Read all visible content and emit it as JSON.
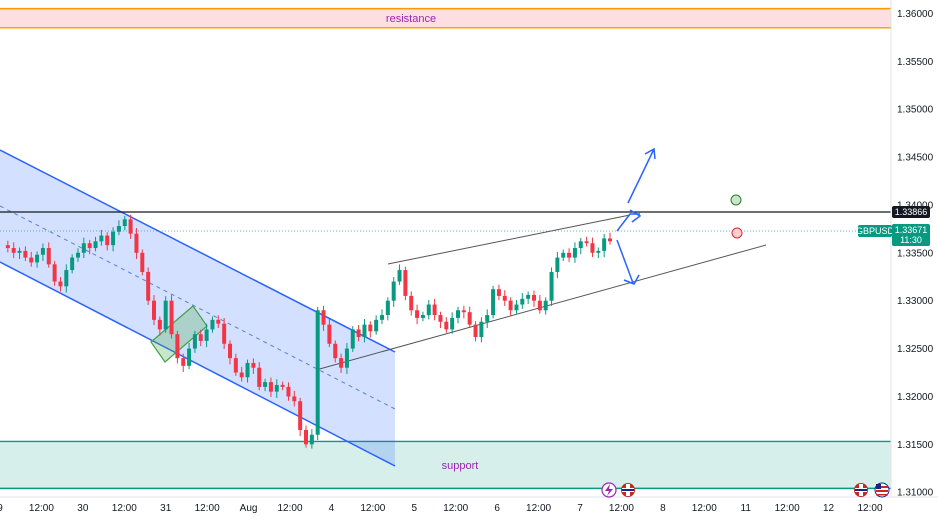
{
  "chart_data": {
    "type": "candlestick",
    "symbol": "GBPUSD",
    "last_price": "1.33671",
    "countdown": "11:30",
    "horizontal_level": "1.33866",
    "ylim": [
      1.3095,
      1.3614
    ],
    "y_ticks": [
      "1.36000",
      "1.35500",
      "1.35000",
      "1.34500",
      "1.34000",
      "1.33500",
      "1.33000",
      "1.32500",
      "1.32000",
      "1.31500",
      "1.31000"
    ],
    "x_ticks": [
      "9",
      "12:00",
      "30",
      "12:00",
      "31",
      "12:00",
      "Aug",
      "12:00",
      "4",
      "12:00",
      "5",
      "12:00",
      "6",
      "12:00",
      "7",
      "12:00",
      "8",
      "12:00",
      "11",
      "12:00",
      "12",
      "12:00"
    ],
    "zones": [
      {
        "label": "resistance",
        "from": 1.3585,
        "to": 1.3605,
        "color": "#f23645"
      },
      {
        "label": "support",
        "from": 1.3104,
        "to": 1.3153,
        "color": "#089981"
      }
    ],
    "price_path": [
      1.3358,
      1.3355,
      1.335,
      1.3352,
      1.3345,
      1.334,
      1.3348,
      1.3355,
      1.3338,
      1.332,
      1.3315,
      1.3332,
      1.3345,
      1.335,
      1.336,
      1.3355,
      1.3362,
      1.3368,
      1.3358,
      1.3372,
      1.3378,
      1.3385,
      1.337,
      1.335,
      1.333,
      1.33,
      1.328,
      1.327,
      1.33,
      1.3265,
      1.324,
      1.3232,
      1.325,
      1.3265,
      1.3258,
      1.327,
      1.328,
      1.3276,
      1.3255,
      1.324,
      1.3225,
      1.322,
      1.3235,
      1.323,
      1.321,
      1.3215,
      1.3205,
      1.3212,
      1.321,
      1.32,
      1.3195,
      1.3165,
      1.315,
      1.316,
      1.329,
      1.3275,
      1.3255,
      1.324,
      1.323,
      1.325,
      1.327,
      1.3262,
      1.3275,
      1.3268,
      1.328,
      1.3285,
      1.33,
      1.332,
      1.3332,
      1.3305,
      1.329,
      1.3282,
      1.3285,
      1.3296,
      1.3285,
      1.3278,
      1.327,
      1.3282,
      1.329,
      1.3288,
      1.3275,
      1.3262,
      1.3278,
      1.3285,
      1.3312,
      1.3305,
      1.33,
      1.329,
      1.3296,
      1.3302,
      1.3306,
      1.33,
      1.329,
      1.33,
      1.333,
      1.3345,
      1.335,
      1.3345,
      1.3355,
      1.3362,
      1.336,
      1.335,
      1.3352,
      1.3365,
      1.3362
    ]
  },
  "toolbar_icons": {
    "lightning": "lightning-icon",
    "uk_flag": "uk-flag-icon",
    "us_flag": "us-flag-icon"
  }
}
